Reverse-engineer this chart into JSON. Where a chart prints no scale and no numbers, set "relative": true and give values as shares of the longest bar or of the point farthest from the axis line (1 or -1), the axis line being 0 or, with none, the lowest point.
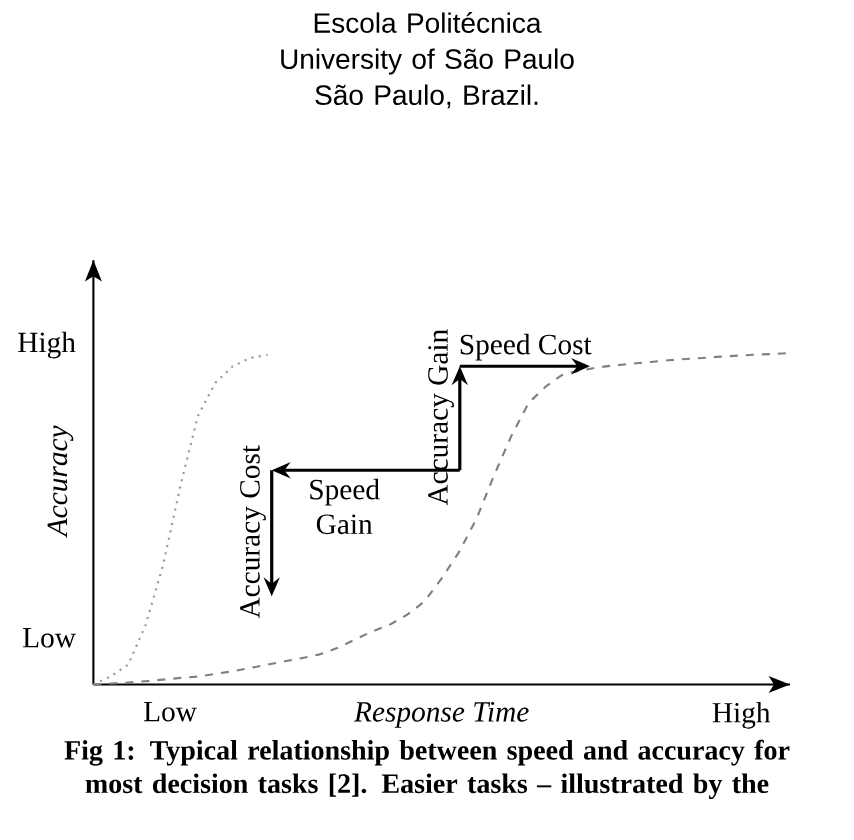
{
  "chart_data": {
    "type": "line",
    "relative": true,
    "subtitle": "Escola Politécnica University of São Paulo São Paulo, Brazil.",
    "xlabel": "Response Time",
    "ylabel": "Accuracy",
    "categories": [
      null,
      null,
      null,
      null,
      null,
      null,
      null,
      null,
      null,
      null,
      null,
      null,
      null,
      null,
      null,
      null,
      null,
      null,
      null,
      null,
      null,
      null,
      null,
      null,
      null,
      null,
      null,
      null,
      null,
      null,
      null,
      null,
      null,
      null,
      null,
      null,
      null,
      null,
      null,
      null,
      null
    ],
    "series": [
      {
        "color": "#999999",
        "line_style": "dotted",
        "values": [
          0,
          0.025,
          0.06,
          0.18,
          0.36,
          0.6,
          0.81,
          0.91,
          0.96,
          0.985,
          0.995,
          null,
          null,
          null,
          null,
          null,
          null,
          null,
          null,
          null,
          null,
          null,
          null,
          null,
          null,
          null,
          null,
          null,
          null,
          null,
          null,
          null,
          null,
          null,
          null,
          null,
          null,
          null,
          null,
          null,
          null
        ]
      },
      {
        "color": "#808080",
        "line_style": "dashed",
        "values": [
          0,
          0.003,
          0.006,
          0.01,
          0.015,
          0.02,
          0.024,
          0.032,
          0.04,
          0.05,
          0.06,
          0.07,
          0.08,
          0.091,
          0.11,
          0.135,
          0.16,
          0.18,
          0.21,
          0.25,
          0.32,
          0.4,
          0.5,
          0.63,
          0.75,
          0.85,
          0.9,
          0.937,
          0.947,
          0.957,
          0.963,
          0.968,
          0.973,
          0.978,
          0.982,
          0.985,
          0.989,
          0.992,
          0.995,
          0.997,
          1.0
        ]
      }
    ],
    "annotations": [
      "Low",
      "High",
      "Low",
      "High",
      "Accuracy Cost",
      "Speed Gain",
      "Accuracy Gain",
      "Speed Cost",
      "Fig 1: Typical relationship between speed and accuracy for most decision tasks [2]. Easier tasks – illustrated by the"
    ]
  }
}
